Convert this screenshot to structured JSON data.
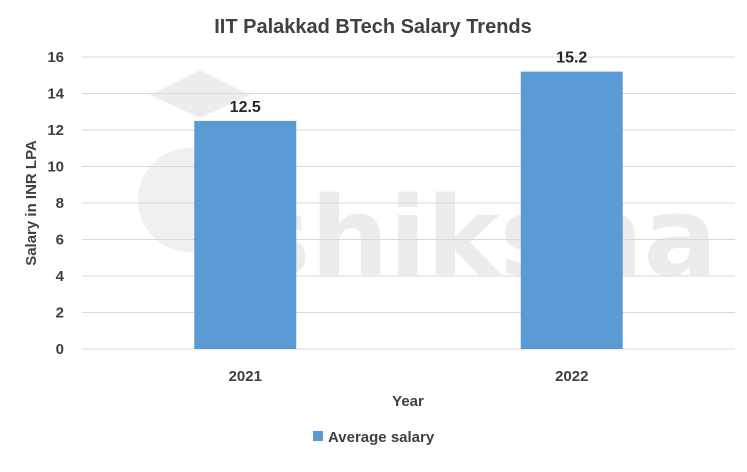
{
  "chart_data": {
    "type": "bar",
    "title": "IIT Palakkad BTech Salary Trends",
    "categories": [
      "2021",
      "2022"
    ],
    "series": [
      {
        "name": "Average salary",
        "values": [
          12.5,
          15.2
        ],
        "color": "#5b9bd5"
      }
    ],
    "xlabel": "Year",
    "ylabel": "Salary  in INR LPA",
    "ylim": [
      0,
      16
    ],
    "yticks": [
      "0",
      "2",
      "4",
      "6",
      "8",
      "10",
      "12",
      "14",
      "16"
    ],
    "data_labels": [
      "12.5",
      "15.2"
    ],
    "grid": true,
    "legend_position": "bottom"
  },
  "watermark": {
    "text": "shiksha"
  }
}
